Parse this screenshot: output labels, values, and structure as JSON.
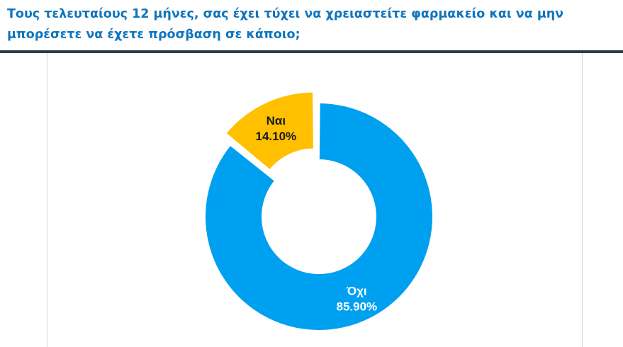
{
  "header": {
    "question": "Τους τελευταίους 12 μήνες, σας έχει τύχει να χρειαστείτε φαρμακείο και να μην μπορέσετε να έχετε πρόσβαση σε κάποιο;"
  },
  "chart_data": {
    "type": "pie",
    "variant": "donut",
    "title": "",
    "slices": [
      {
        "label": "Όχι",
        "value": 85.9,
        "display": "85.90%",
        "color": "#00a0f0",
        "text_color": "#ffffff"
      },
      {
        "label": "Ναι",
        "value": 14.1,
        "display": "14.10%",
        "color": "#ffc000",
        "text_color": "#1a1a1a"
      }
    ],
    "exploded": "Ναι",
    "legend": "none"
  }
}
